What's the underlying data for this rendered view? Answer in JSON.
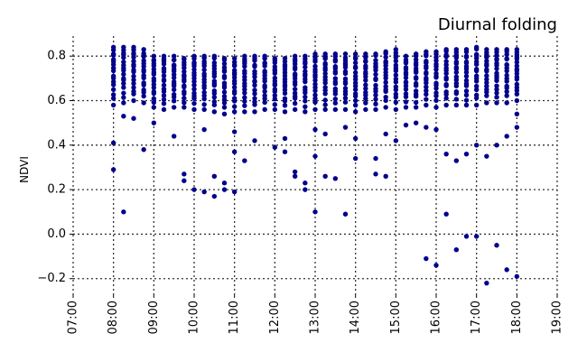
{
  "chart_data": {
    "type": "scatter",
    "title": "Diurnal folding",
    "xlabel": "",
    "ylabel": "NDVI",
    "xlim": [
      7,
      19
    ],
    "ylim": [
      -0.27,
      0.89
    ],
    "x_tick_values": [
      7,
      8,
      9,
      10,
      11,
      12,
      13,
      14,
      15,
      16,
      17,
      18,
      19
    ],
    "x_tick_labels": [
      "07:00",
      "08:00",
      "09:00",
      "10:00",
      "11:00",
      "12:00",
      "13:00",
      "14:00",
      "15:00",
      "16:00",
      "17:00",
      "18:00",
      "19:00"
    ],
    "y_tick_values": [
      -0.2,
      0.0,
      0.2,
      0.4,
      0.6,
      0.8
    ],
    "y_tick_labels": [
      "−0.2",
      "0.0",
      "0.2",
      "0.4",
      "0.6",
      "0.8"
    ],
    "grid": true,
    "marker_color": "#00008b",
    "x_sample_times": [
      8.0,
      8.25,
      8.5,
      8.75,
      9.0,
      9.25,
      9.5,
      9.75,
      10.0,
      10.25,
      10.5,
      10.75,
      11.0,
      11.25,
      11.5,
      11.75,
      12.0,
      12.25,
      12.5,
      12.75,
      13.0,
      13.25,
      13.5,
      13.75,
      14.0,
      14.25,
      14.5,
      14.75,
      15.0,
      15.25,
      15.5,
      15.75,
      16.0,
      16.25,
      16.5,
      16.75,
      17.0,
      17.25,
      17.5,
      17.75,
      18.0
    ],
    "band_ranges": [
      [
        8.0,
        0.58,
        0.84
      ],
      [
        8.25,
        0.59,
        0.84
      ],
      [
        8.5,
        0.6,
        0.84
      ],
      [
        8.75,
        0.59,
        0.83
      ],
      [
        9.0,
        0.57,
        0.8
      ],
      [
        9.25,
        0.56,
        0.8
      ],
      [
        9.5,
        0.57,
        0.8
      ],
      [
        9.75,
        0.57,
        0.79
      ],
      [
        10.0,
        0.56,
        0.8
      ],
      [
        10.25,
        0.56,
        0.8
      ],
      [
        10.5,
        0.55,
        0.8
      ],
      [
        10.75,
        0.54,
        0.79
      ],
      [
        11.0,
        0.55,
        0.79
      ],
      [
        11.25,
        0.55,
        0.8
      ],
      [
        11.5,
        0.55,
        0.8
      ],
      [
        11.75,
        0.56,
        0.8
      ],
      [
        12.0,
        0.56,
        0.79
      ],
      [
        12.25,
        0.55,
        0.79
      ],
      [
        12.5,
        0.56,
        0.8
      ],
      [
        12.75,
        0.55,
        0.8
      ],
      [
        13.0,
        0.56,
        0.81
      ],
      [
        13.25,
        0.56,
        0.81
      ],
      [
        13.5,
        0.56,
        0.81
      ],
      [
        13.75,
        0.56,
        0.81
      ],
      [
        14.0,
        0.55,
        0.81
      ],
      [
        14.25,
        0.56,
        0.81
      ],
      [
        14.5,
        0.56,
        0.81
      ],
      [
        14.75,
        0.57,
        0.82
      ],
      [
        15.0,
        0.56,
        0.83
      ],
      [
        15.25,
        0.57,
        0.8
      ],
      [
        15.5,
        0.57,
        0.81
      ],
      [
        15.75,
        0.58,
        0.82
      ],
      [
        16.0,
        0.57,
        0.82
      ],
      [
        16.25,
        0.58,
        0.83
      ],
      [
        16.5,
        0.58,
        0.83
      ],
      [
        16.75,
        0.58,
        0.83
      ],
      [
        17.0,
        0.58,
        0.84
      ],
      [
        17.25,
        0.59,
        0.83
      ],
      [
        17.5,
        0.59,
        0.83
      ],
      [
        17.75,
        0.59,
        0.83
      ],
      [
        18.0,
        0.6,
        0.83
      ]
    ],
    "outliers": [
      [
        8.0,
        0.41
      ],
      [
        8.0,
        0.29
      ],
      [
        8.25,
        0.1
      ],
      [
        8.25,
        0.53
      ],
      [
        8.5,
        0.52
      ],
      [
        8.75,
        0.38
      ],
      [
        9.0,
        0.5
      ],
      [
        9.5,
        0.44
      ],
      [
        9.75,
        0.27
      ],
      [
        9.75,
        0.24
      ],
      [
        10.0,
        0.2
      ],
      [
        10.25,
        0.47
      ],
      [
        10.25,
        0.19
      ],
      [
        10.5,
        0.26
      ],
      [
        10.5,
        0.17
      ],
      [
        10.75,
        0.23
      ],
      [
        10.75,
        0.2
      ],
      [
        11.0,
        0.46
      ],
      [
        11.0,
        0.37
      ],
      [
        11.0,
        0.19
      ],
      [
        11.25,
        0.33
      ],
      [
        11.5,
        0.42
      ],
      [
        12.0,
        0.39
      ],
      [
        12.25,
        0.43
      ],
      [
        12.25,
        0.37
      ],
      [
        12.5,
        0.28
      ],
      [
        12.5,
        0.26
      ],
      [
        12.75,
        0.23
      ],
      [
        12.75,
        0.2
      ],
      [
        13.0,
        0.47
      ],
      [
        13.0,
        0.35
      ],
      [
        13.0,
        0.1
      ],
      [
        13.25,
        0.26
      ],
      [
        13.25,
        0.45
      ],
      [
        13.5,
        0.25
      ],
      [
        13.75,
        0.48
      ],
      [
        13.75,
        0.09
      ],
      [
        14.0,
        0.34
      ],
      [
        14.0,
        0.43
      ],
      [
        14.5,
        0.34
      ],
      [
        14.5,
        0.27
      ],
      [
        14.75,
        0.26
      ],
      [
        14.75,
        0.45
      ],
      [
        15.0,
        0.42
      ],
      [
        15.25,
        0.49
      ],
      [
        15.5,
        0.5
      ],
      [
        15.75,
        0.48
      ],
      [
        15.75,
        -0.11
      ],
      [
        16.0,
        0.47
      ],
      [
        16.0,
        -0.14
      ],
      [
        16.25,
        0.36
      ],
      [
        16.25,
        0.09
      ],
      [
        16.5,
        0.33
      ],
      [
        16.5,
        -0.07
      ],
      [
        16.75,
        0.36
      ],
      [
        16.75,
        -0.01
      ],
      [
        17.0,
        0.4
      ],
      [
        17.0,
        -0.01
      ],
      [
        17.25,
        0.35
      ],
      [
        17.25,
        -0.22
      ],
      [
        17.5,
        0.4
      ],
      [
        17.5,
        -0.05
      ],
      [
        17.75,
        0.44
      ],
      [
        17.75,
        -0.16
      ],
      [
        18.0,
        0.48
      ],
      [
        18.0,
        0.54
      ],
      [
        18.0,
        -0.19
      ]
    ]
  }
}
